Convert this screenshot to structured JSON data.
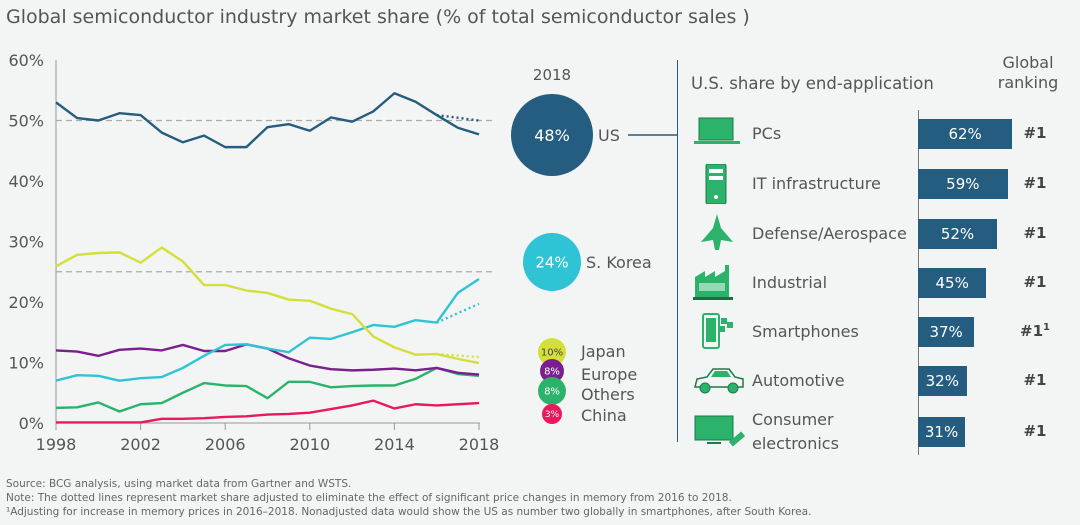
{
  "title": "Global semiconductor industry market share (% of total semiconductor sales )",
  "chart_data": {
    "type": "line",
    "title": "Global semiconductor industry market share (% of total semiconductor sales )",
    "x": [
      1998,
      1999,
      2000,
      2001,
      2002,
      2003,
      2004,
      2005,
      2006,
      2007,
      2008,
      2009,
      2010,
      2011,
      2012,
      2013,
      2014,
      2015,
      2016,
      2017,
      2018
    ],
    "xticks": [
      "1998",
      "2002",
      "2006",
      "2010",
      "2014",
      "2018"
    ],
    "yticks": [
      "0%",
      "10%",
      "20%",
      "30%",
      "40%",
      "50%",
      "60%"
    ],
    "ylim": [
      0,
      60
    ],
    "reference_lines": [
      50,
      25
    ],
    "series": [
      {
        "name": "US",
        "color": "#245d7f",
        "values": [
          53.0,
          50.4,
          50.0,
          51.2,
          50.9,
          48.0,
          46.4,
          47.5,
          45.6,
          45.6,
          48.9,
          49.4,
          48.3,
          50.5,
          49.8,
          51.5,
          54.5,
          53.1,
          50.9,
          48.8,
          47.7
        ],
        "adjusted": [
          [
            2016,
            50.9
          ],
          [
            2018,
            50.0
          ]
        ],
        "share_2018": "48%"
      },
      {
        "name": "S. Korea",
        "color": "#2ec4d6",
        "values": [
          7.0,
          7.9,
          7.8,
          7.0,
          7.4,
          7.6,
          9.1,
          11.1,
          12.9,
          13.0,
          12.3,
          11.7,
          14.1,
          13.9,
          15.0,
          16.2,
          15.9,
          17.0,
          16.6,
          21.5,
          23.8
        ],
        "adjusted": [
          [
            2016,
            16.6
          ],
          [
            2018,
            19.7
          ]
        ],
        "share_2018": "24%"
      },
      {
        "name": "Japan",
        "color": "#d4df3a",
        "values": [
          25.9,
          27.8,
          28.1,
          28.2,
          26.5,
          29.0,
          26.7,
          22.8,
          22.8,
          21.9,
          21.5,
          20.4,
          20.2,
          18.9,
          18.0,
          14.3,
          12.5,
          11.3,
          11.4,
          10.6,
          9.9
        ],
        "adjusted": [
          [
            2016,
            11.4
          ],
          [
            2018,
            10.9
          ]
        ],
        "share_2018": "10%"
      },
      {
        "name": "Europe",
        "color": "#7b1f8f",
        "values": [
          12.0,
          11.8,
          11.1,
          12.1,
          12.3,
          12.0,
          12.9,
          11.9,
          11.9,
          13.0,
          12.3,
          10.7,
          9.5,
          8.9,
          8.7,
          8.8,
          9.0,
          8.7,
          9.1,
          8.3,
          8.0
        ],
        "share_2018": "8%"
      },
      {
        "name": "Others",
        "color": "#2bb36b",
        "values": [
          2.5,
          2.6,
          3.4,
          1.9,
          3.1,
          3.3,
          5.0,
          6.6,
          6.2,
          6.1,
          4.1,
          6.8,
          6.8,
          5.9,
          6.1,
          6.2,
          6.2,
          7.3,
          9.1,
          8.1,
          7.8
        ],
        "share_2018": "8%"
      },
      {
        "name": "China",
        "color": "#e8195c",
        "values": [
          0.1,
          0.1,
          0.1,
          0.1,
          0.1,
          0.7,
          0.7,
          0.8,
          1.0,
          1.1,
          1.4,
          1.5,
          1.7,
          2.3,
          2.9,
          3.7,
          2.4,
          3.1,
          2.9,
          3.1,
          3.3
        ],
        "share_2018": "3%"
      }
    ],
    "bubble_year": "2018"
  },
  "us_panel": {
    "header": "U.S. share by end-application",
    "ranking_header": "Global ranking",
    "items": [
      {
        "label": "PCs",
        "share": "62%",
        "value": 62,
        "rank": "#1",
        "icon": "laptop-icon"
      },
      {
        "label": "IT infrastructure",
        "share": "59%",
        "value": 59,
        "rank": "#1",
        "icon": "server-icon"
      },
      {
        "label": "Defense/Aerospace",
        "share": "52%",
        "value": 52,
        "rank": "#1",
        "icon": "jet-icon"
      },
      {
        "label": "Industrial",
        "share": "45%",
        "value": 45,
        "rank": "#1",
        "icon": "factory-icon"
      },
      {
        "label": "Smartphones",
        "share": "37%",
        "value": 37,
        "rank": "#1",
        "rank_sup": "1",
        "icon": "smartphone-icon"
      },
      {
        "label": "Automotive",
        "share": "32%",
        "value": 32,
        "rank": "#1",
        "icon": "car-icon"
      },
      {
        "label": "Consumer electronics",
        "share": "31%",
        "value": 31,
        "rank": "#1",
        "icon": "tv-icon"
      }
    ]
  },
  "footnotes": {
    "source": "Source: BCG analysis, using market data from Gartner and WSTS.",
    "note": "Note: The dotted lines represent market share adjusted to eliminate the effect of significant price changes in memory from 2016 to 2018.",
    "footnote1": "¹Adjusting for increase in memory prices in 2016–2018. Nonadjusted data would show the US as number two globally in smartphones, after South Korea."
  }
}
